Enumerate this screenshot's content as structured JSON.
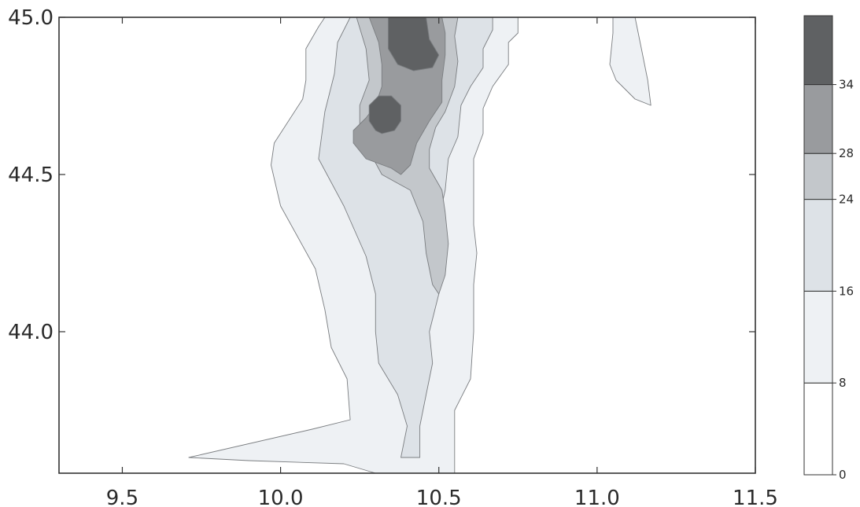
{
  "chart_data": {
    "type": "heatmap",
    "title": "",
    "xlabel": "",
    "ylabel": "",
    "xlim": [
      9.3,
      11.5
    ],
    "ylim": [
      43.55,
      45.0
    ],
    "x_ticks": [
      9.5,
      10.0,
      10.5,
      11.0,
      11.5
    ],
    "y_ticks": [
      44.0,
      44.5,
      45.0
    ],
    "x_tick_labels": [
      "9.5",
      "10.0",
      "10.5",
      "11.0",
      "11.5"
    ],
    "y_tick_labels": [
      "44.0",
      "44.5",
      "45.0"
    ],
    "grid": false,
    "colorbar": {
      "levels": [
        0,
        8,
        16,
        24,
        28,
        34,
        40
      ],
      "tick_labels": [
        "0",
        "8",
        "16",
        "24",
        "28",
        "34"
      ],
      "colors": [
        "#ffffff",
        "#eef1f4",
        "#dde2e7",
        "#c3c7cb",
        "#999b9e",
        "#5f6163"
      ]
    },
    "contours": [
      {
        "band": 1,
        "min": 8,
        "max": 16,
        "polygons": [
          [
            [
              9.71,
              43.6
            ],
            [
              10.1,
              43.69
            ],
            [
              10.22,
              43.72
            ],
            [
              10.21,
              43.85
            ],
            [
              10.16,
              43.95
            ],
            [
              10.14,
              44.07
            ],
            [
              10.11,
              44.2
            ],
            [
              10.0,
              44.4
            ],
            [
              9.97,
              44.53
            ],
            [
              9.98,
              44.6
            ],
            [
              10.07,
              44.74
            ],
            [
              10.08,
              44.8
            ],
            [
              10.08,
              44.9
            ],
            [
              10.12,
              44.97
            ],
            [
              10.14,
              45.0
            ],
            [
              10.75,
              45.0
            ],
            [
              10.75,
              44.95
            ],
            [
              10.72,
              44.92
            ],
            [
              10.72,
              44.85
            ],
            [
              10.67,
              44.78
            ],
            [
              10.64,
              44.71
            ],
            [
              10.64,
              44.63
            ],
            [
              10.61,
              44.55
            ],
            [
              10.61,
              44.43
            ],
            [
              10.61,
              44.34
            ],
            [
              10.62,
              44.25
            ],
            [
              10.61,
              44.15
            ],
            [
              10.61,
              44.0
            ],
            [
              10.6,
              43.85
            ],
            [
              10.55,
              43.75
            ],
            [
              10.55,
              43.65
            ],
            [
              10.55,
              43.6
            ],
            [
              10.55,
              43.55
            ],
            [
              10.3,
              43.55
            ],
            [
              10.2,
              43.58
            ],
            [
              9.9,
              43.59
            ],
            [
              9.71,
              43.6
            ]
          ],
          [
            [
              11.05,
              45.0
            ],
            [
              11.12,
              45.0
            ],
            [
              11.14,
              44.9
            ],
            [
              11.16,
              44.8
            ],
            [
              11.17,
              44.72
            ],
            [
              11.12,
              44.74
            ],
            [
              11.06,
              44.8
            ],
            [
              11.04,
              44.85
            ],
            [
              11.05,
              44.95
            ],
            [
              11.05,
              45.0
            ]
          ]
        ]
      },
      {
        "band": 2,
        "min": 16,
        "max": 24,
        "polygons": [
          [
            [
              10.38,
              43.6
            ],
            [
              10.4,
              43.7
            ],
            [
              10.37,
              43.8
            ],
            [
              10.31,
              43.9
            ],
            [
              10.3,
              44.0
            ],
            [
              10.3,
              44.12
            ],
            [
              10.27,
              44.24
            ],
            [
              10.2,
              44.4
            ],
            [
              10.12,
              44.55
            ],
            [
              10.14,
              44.7
            ],
            [
              10.17,
              44.82
            ],
            [
              10.18,
              44.92
            ],
            [
              10.22,
              45.0
            ],
            [
              10.67,
              45.0
            ],
            [
              10.67,
              44.96
            ],
            [
              10.64,
              44.9
            ],
            [
              10.64,
              44.84
            ],
            [
              10.6,
              44.78
            ],
            [
              10.57,
              44.72
            ],
            [
              10.56,
              44.62
            ],
            [
              10.53,
              44.55
            ],
            [
              10.52,
              44.45
            ],
            [
              10.5,
              44.36
            ],
            [
              10.51,
              44.3
            ],
            [
              10.48,
              44.2
            ],
            [
              10.5,
              44.12
            ],
            [
              10.47,
              44.0
            ],
            [
              10.48,
              43.9
            ],
            [
              10.46,
              43.8
            ],
            [
              10.44,
              43.7
            ],
            [
              10.44,
              43.6
            ],
            [
              10.38,
              43.6
            ]
          ]
        ]
      },
      {
        "band": 3,
        "min": 24,
        "max": 28,
        "polygons": [
          [
            [
              10.25,
              44.63
            ],
            [
              10.32,
              44.5
            ],
            [
              10.41,
              44.45
            ],
            [
              10.45,
              44.35
            ],
            [
              10.46,
              44.25
            ],
            [
              10.48,
              44.15
            ],
            [
              10.5,
              44.12
            ],
            [
              10.52,
              44.18
            ],
            [
              10.53,
              44.28
            ],
            [
              10.52,
              44.38
            ],
            [
              10.51,
              44.45
            ],
            [
              10.47,
              44.52
            ],
            [
              10.47,
              44.58
            ],
            [
              10.49,
              44.65
            ],
            [
              10.52,
              44.7
            ],
            [
              10.55,
              44.78
            ],
            [
              10.56,
              44.86
            ],
            [
              10.55,
              44.94
            ],
            [
              10.56,
              45.0
            ],
            [
              10.24,
              45.0
            ],
            [
              10.27,
              44.9
            ],
            [
              10.28,
              44.8
            ],
            [
              10.25,
              44.72
            ],
            [
              10.25,
              44.63
            ]
          ]
        ]
      },
      {
        "band": 4,
        "min": 28,
        "max": 34,
        "polygons": [
          [
            [
              10.23,
              44.6
            ],
            [
              10.27,
              44.55
            ],
            [
              10.35,
              44.52
            ],
            [
              10.38,
              44.5
            ],
            [
              10.41,
              44.53
            ],
            [
              10.43,
              44.6
            ],
            [
              10.47,
              44.67
            ],
            [
              10.51,
              44.73
            ],
            [
              10.51,
              44.8
            ],
            [
              10.52,
              44.88
            ],
            [
              10.52,
              44.95
            ],
            [
              10.51,
              45.0
            ],
            [
              10.28,
              45.0
            ],
            [
              10.31,
              44.92
            ],
            [
              10.32,
              44.85
            ],
            [
              10.32,
              44.78
            ],
            [
              10.3,
              44.72
            ],
            [
              10.27,
              44.68
            ],
            [
              10.23,
              44.64
            ],
            [
              10.23,
              44.6
            ]
          ]
        ]
      },
      {
        "band": 5,
        "min": 34,
        "max": 40,
        "polygons": [
          [
            [
              10.34,
              45.0
            ],
            [
              10.34,
              44.9
            ],
            [
              10.37,
              44.85
            ],
            [
              10.42,
              44.83
            ],
            [
              10.48,
              44.84
            ],
            [
              10.5,
              44.88
            ],
            [
              10.47,
              44.93
            ],
            [
              10.46,
              45.0
            ],
            [
              10.34,
              45.0
            ]
          ],
          [
            [
              10.32,
              44.63
            ],
            [
              10.36,
              44.64
            ],
            [
              10.38,
              44.67
            ],
            [
              10.38,
              44.72
            ],
            [
              10.35,
              44.75
            ],
            [
              10.31,
              44.75
            ],
            [
              10.28,
              44.72
            ],
            [
              10.28,
              44.67
            ],
            [
              10.3,
              44.64
            ],
            [
              10.32,
              44.63
            ]
          ]
        ]
      }
    ]
  }
}
